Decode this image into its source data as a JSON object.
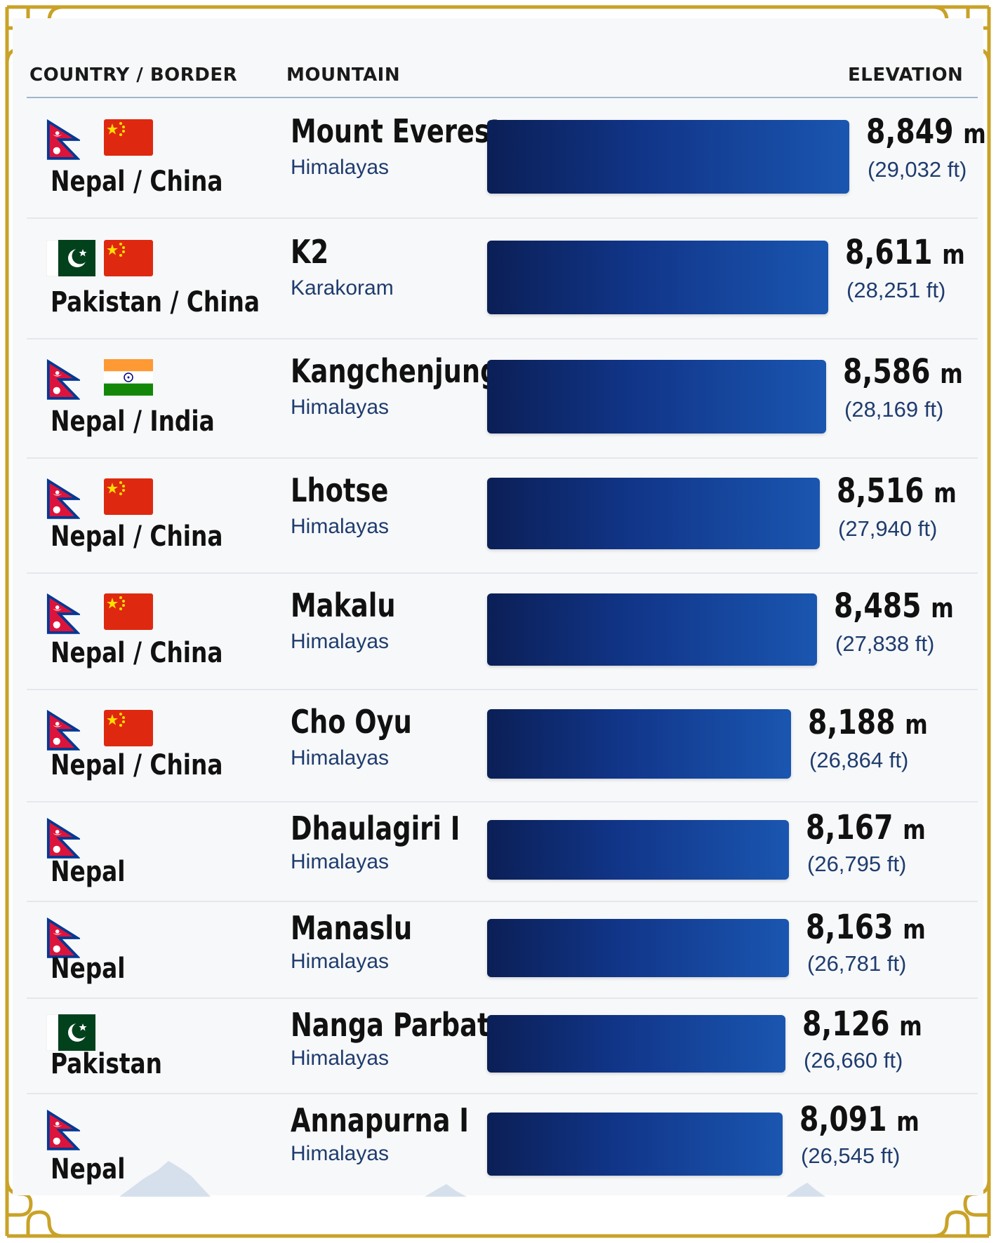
{
  "header": {
    "country_label": "COUNTRY / BORDER",
    "mountain_label": "MOUNTAIN",
    "elevation_label": "ELEVATION"
  },
  "colors": {
    "frame_gold": "#c9a227",
    "bar_dark": "#0b1f56",
    "bar_light": "#1a56b0",
    "header_rule": "#9fb6cf"
  },
  "chart_data": {
    "type": "bar",
    "orientation": "horizontal",
    "categories": [
      "Mount Everest",
      "K2",
      "Kangchenjunga",
      "Lhotse",
      "Makalu",
      "Cho Oyu",
      "Dhaulagiri I",
      "Manaslu",
      "Nanga Parbat",
      "Annapurna I"
    ],
    "values": [
      8849,
      8611,
      8586,
      8516,
      8485,
      8188,
      8167,
      8163,
      8126,
      8091
    ],
    "unit": "m",
    "rows": [
      {
        "country": "Nepal / China",
        "flags": [
          "nepal",
          "china"
        ],
        "mountain": "Mount Everest",
        "range": "Himalayas",
        "elevation_m": 8849,
        "elevation_m_text": "8,849",
        "unit": "m",
        "feet_text": "(29,032 ft)"
      },
      {
        "country": "Pakistan / China",
        "flags": [
          "pakistan",
          "china"
        ],
        "mountain": "K2",
        "range": "Karakoram",
        "elevation_m": 8611,
        "elevation_m_text": "8,611",
        "unit": "m",
        "feet_text": "(28,251 ft)"
      },
      {
        "country": "Nepal / India",
        "flags": [
          "nepal",
          "india"
        ],
        "mountain": "Kangchenjunga",
        "range": "Himalayas",
        "elevation_m": 8586,
        "elevation_m_text": "8,586",
        "unit": "m",
        "feet_text": "(28,169 ft)"
      },
      {
        "country": "Nepal / China",
        "flags": [
          "nepal",
          "china"
        ],
        "mountain": "Lhotse",
        "range": "Himalayas",
        "elevation_m": 8516,
        "elevation_m_text": "8,516",
        "unit": "m",
        "feet_text": "(27,940 ft)"
      },
      {
        "country": "Nepal / China",
        "flags": [
          "nepal",
          "china"
        ],
        "mountain": "Makalu",
        "range": "Himalayas",
        "elevation_m": 8485,
        "elevation_m_text": "8,485",
        "unit": "m",
        "feet_text": "(27,838 ft)"
      },
      {
        "country": "Nepal / China",
        "flags": [
          "nepal",
          "china"
        ],
        "mountain": "Cho Oyu",
        "range": "Himalayas",
        "elevation_m": 8188,
        "elevation_m_text": "8,188",
        "unit": "m",
        "feet_text": "(26,864 ft)"
      },
      {
        "country": "Nepal",
        "flags": [
          "nepal"
        ],
        "mountain": "Dhaulagiri I",
        "range": "Himalayas",
        "elevation_m": 8167,
        "elevation_m_text": "8,167",
        "unit": "m",
        "feet_text": "(26,795 ft)"
      },
      {
        "country": "Nepal",
        "flags": [
          "nepal"
        ],
        "mountain": "Manaslu",
        "range": "Himalayas",
        "elevation_m": 8163,
        "elevation_m_text": "8,163",
        "unit": "m",
        "feet_text": "(26,781 ft)"
      },
      {
        "country": "Pakistan",
        "flags": [
          "pakistan"
        ],
        "mountain": "Nanga Parbat",
        "range": "Himalayas",
        "elevation_m": 8126,
        "elevation_m_text": "8,126",
        "unit": "m",
        "feet_text": "(26,660 ft)"
      },
      {
        "country": "Nepal",
        "flags": [
          "nepal"
        ],
        "mountain": "Annapurna I",
        "range": "Himalayas",
        "elevation_m": 8091,
        "elevation_m_text": "8,091",
        "unit": "m",
        "feet_text": "(26,545 ft)"
      }
    ]
  }
}
